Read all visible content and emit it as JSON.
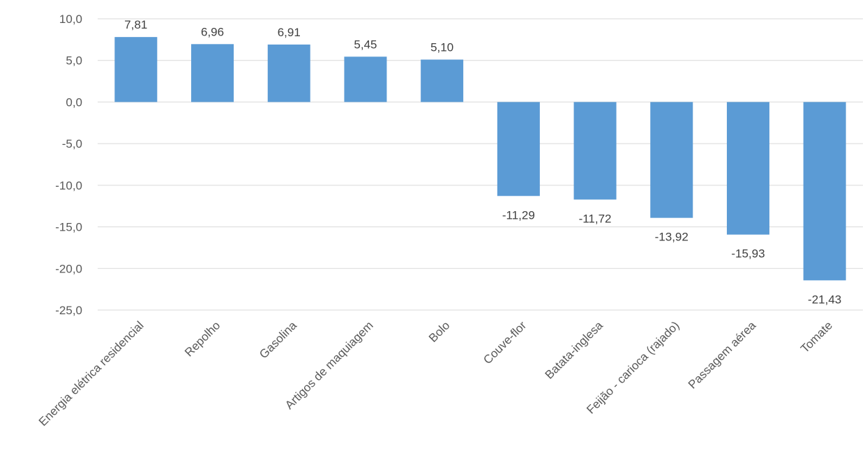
{
  "chart_data": {
    "type": "bar",
    "title": "",
    "xlabel": "",
    "ylabel": "",
    "categories": [
      "Energia elétrica residencial",
      "Repolho",
      "Gasolina",
      "Artigos de maquiagem",
      "Bolo",
      "Couve-flor",
      "Batata-inglesa",
      "Feijão - carioca (rajado)",
      "Passagem aérea",
      "Tomate"
    ],
    "values": [
      7.81,
      6.96,
      6.91,
      5.45,
      5.1,
      -11.29,
      -11.72,
      -13.92,
      -15.93,
      -21.43
    ],
    "value_labels": [
      "7,81",
      "6,96",
      "6,91",
      "5,45",
      "5,10",
      "-11,29",
      "-11,72",
      "-13,92",
      "-15,93",
      "-21,43"
    ],
    "ylim": [
      -25,
      10
    ],
    "yticks": [
      10,
      5,
      0,
      -5,
      -10,
      -15,
      -20,
      -25
    ],
    "ytick_labels": [
      "10,0",
      "5,0",
      "0,0",
      "-5,0",
      "-10,0",
      "-15,0",
      "-20,0",
      "-25,0"
    ],
    "grid": true,
    "legend": "none",
    "bar_color": "#5b9bd5"
  }
}
